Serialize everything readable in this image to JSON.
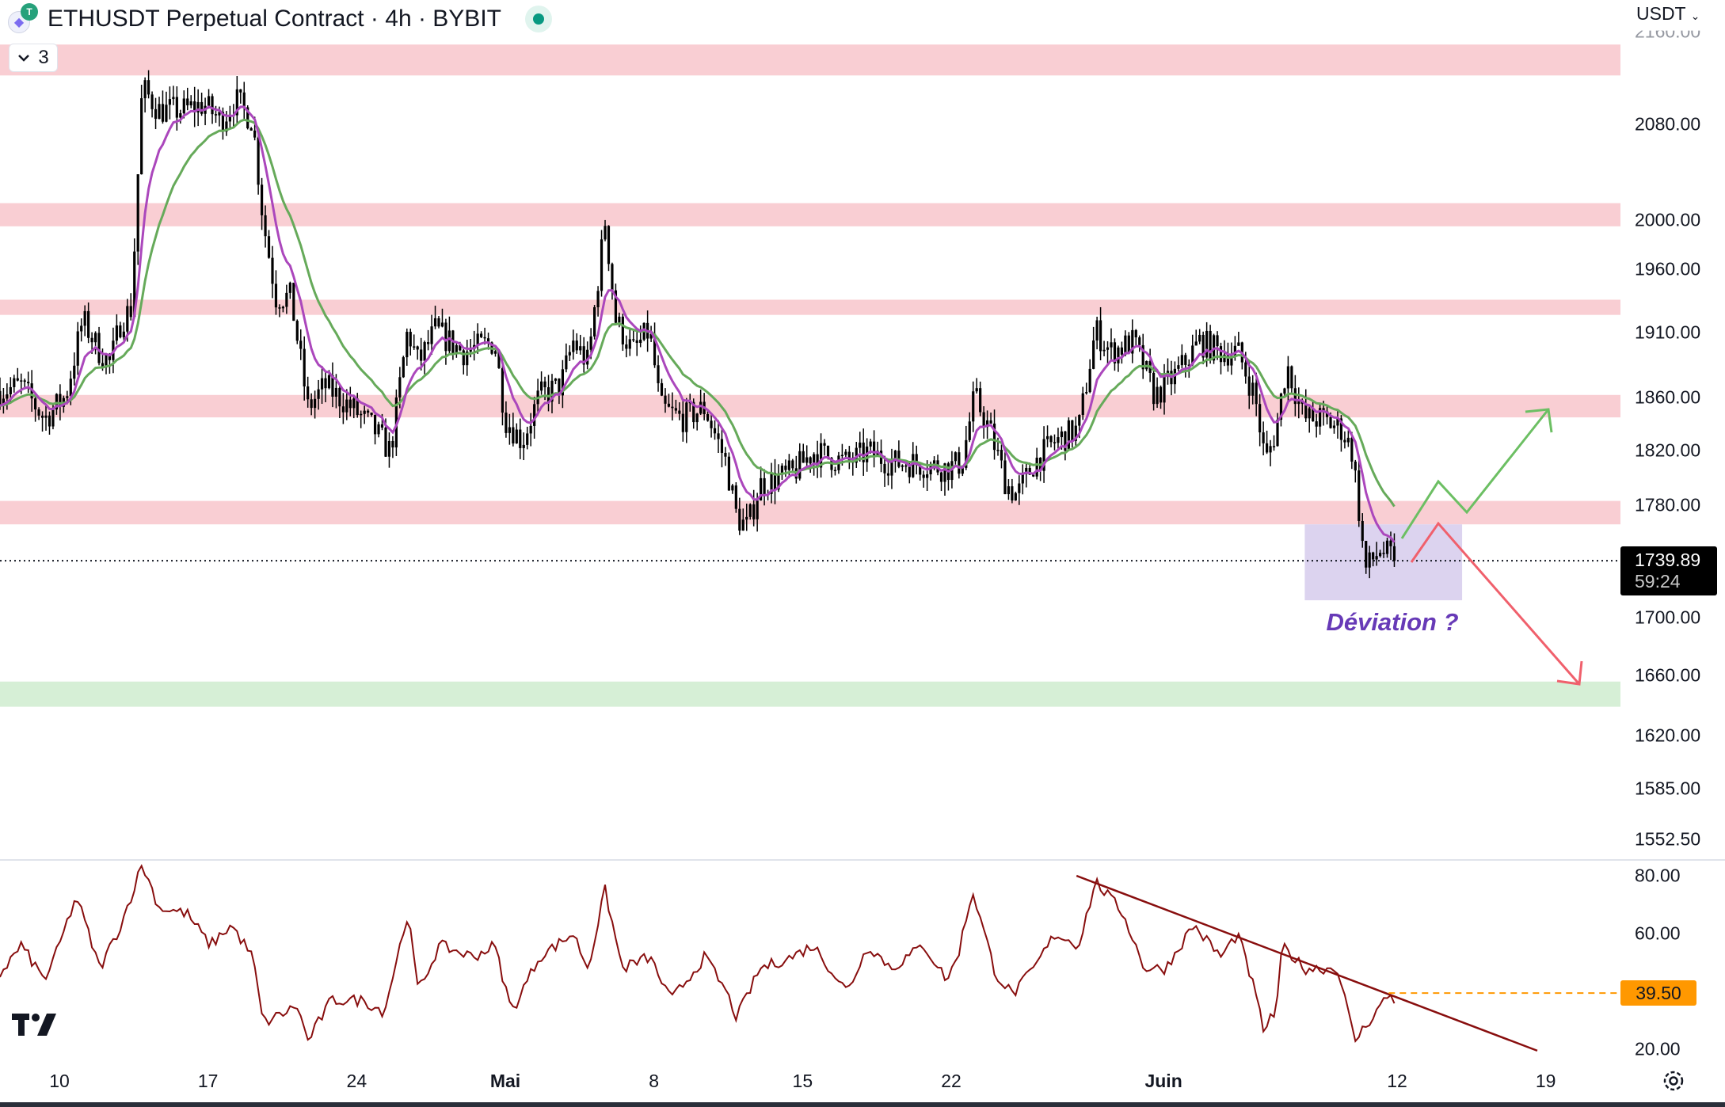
{
  "header": {
    "title": "ETHUSDT Perpetual Contract · 4h · BYBIT",
    "base_icon": "ethereum-icon",
    "quote_icon": "tether-icon",
    "status": "market-open-dot",
    "legend_toggle_count": "3",
    "currency": "USDT"
  },
  "colors": {
    "candle": "#000000",
    "ema_fast": "#ab47bc",
    "ema_slow": "#66aa5a",
    "resistance_zone": "#f9ced3",
    "support_zone": "#d6efd6",
    "deviation_box": "#dcd3ef",
    "deviation_text": "#673ab7",
    "bull_arrow": "#6cbf63",
    "bear_arrow": "#f0606c",
    "rsi_line": "#880e0e",
    "rsi_level": "#ff9800"
  },
  "annotation": {
    "deviation_label": "Déviation ?"
  },
  "price_axis": {
    "labels": [
      "2160.00",
      "2080.00",
      "2000.00",
      "1960.00",
      "1910.00",
      "1860.00",
      "1820.00",
      "1780.00",
      "1700.00",
      "1660.00",
      "1620.00",
      "1585.00",
      "1552.50"
    ],
    "last_price": "1739.89",
    "countdown": "59:24"
  },
  "rsi_axis": {
    "labels": [
      "80.00",
      "60.00",
      "20.00"
    ],
    "level_value": "39.50"
  },
  "time_axis": {
    "labels": [
      {
        "text": "10",
        "day": 0,
        "bold": false
      },
      {
        "text": "17",
        "day": 7,
        "bold": false
      },
      {
        "text": "24",
        "day": 14,
        "bold": false
      },
      {
        "text": "Mai",
        "day": 21,
        "bold": true
      },
      {
        "text": "8",
        "day": 28,
        "bold": false
      },
      {
        "text": "15",
        "day": 35,
        "bold": false
      },
      {
        "text": "22",
        "day": 42,
        "bold": false
      },
      {
        "text": "Juin",
        "day": 52,
        "bold": true
      },
      {
        "text": "12",
        "day": 63,
        "bold": false
      },
      {
        "text": "19",
        "day": 70,
        "bold": false
      }
    ]
  },
  "chart_data": {
    "type": "candlestick",
    "title": "ETHUSDT Perpetual Contract · 4h · BYBIT",
    "x_unit": "days since 10 April",
    "y_scale": "log",
    "ylim": [
      1530,
      2175
    ],
    "price_path": [
      [
        -2.8,
        1865
      ],
      [
        -1.8,
        1869
      ],
      [
        -0.7,
        1844
      ],
      [
        0.3,
        1861
      ],
      [
        1.1,
        1920
      ],
      [
        1.9,
        1895
      ],
      [
        2.4,
        1886
      ],
      [
        2.9,
        1920
      ],
      [
        3.4,
        1929
      ],
      [
        3.9,
        2111
      ],
      [
        4.7,
        2092
      ],
      [
        5.8,
        2092
      ],
      [
        6.8,
        2097
      ],
      [
        7.6,
        2083
      ],
      [
        8.3,
        2101
      ],
      [
        9.1,
        2083
      ],
      [
        9.6,
        1999
      ],
      [
        10.2,
        1938
      ],
      [
        10.9,
        1938
      ],
      [
        11.7,
        1852
      ],
      [
        12.5,
        1869
      ],
      [
        13.8,
        1852
      ],
      [
        14.8,
        1836
      ],
      [
        15.6,
        1819
      ],
      [
        16.4,
        1912
      ],
      [
        16.9,
        1886
      ],
      [
        17.7,
        1912
      ],
      [
        19.0,
        1895
      ],
      [
        20.5,
        1903
      ],
      [
        21.0,
        1844
      ],
      [
        21.8,
        1827
      ],
      [
        22.6,
        1861
      ],
      [
        23.6,
        1869
      ],
      [
        24.2,
        1903
      ],
      [
        24.9,
        1886
      ],
      [
        25.7,
        1999
      ],
      [
        26.2,
        1920
      ],
      [
        27.0,
        1895
      ],
      [
        27.8,
        1912
      ],
      [
        28.3,
        1852
      ],
      [
        29.3,
        1844
      ],
      [
        30.4,
        1852
      ],
      [
        31.4,
        1811
      ],
      [
        31.9,
        1771
      ],
      [
        32.4,
        1764
      ],
      [
        33.0,
        1795
      ],
      [
        34.5,
        1803
      ],
      [
        35.5,
        1819
      ],
      [
        37.1,
        1811
      ],
      [
        38.1,
        1819
      ],
      [
        39.2,
        1811
      ],
      [
        40.2,
        1811
      ],
      [
        41.8,
        1807
      ],
      [
        42.5,
        1811
      ],
      [
        43.1,
        1861
      ],
      [
        43.8,
        1836
      ],
      [
        44.6,
        1795
      ],
      [
        45.1,
        1787
      ],
      [
        45.9,
        1811
      ],
      [
        46.9,
        1827
      ],
      [
        48.0,
        1836
      ],
      [
        48.8,
        1912
      ],
      [
        49.5,
        1895
      ],
      [
        50.6,
        1903
      ],
      [
        51.6,
        1861
      ],
      [
        52.6,
        1878
      ],
      [
        53.7,
        1903
      ],
      [
        54.7,
        1895
      ],
      [
        55.5,
        1895
      ],
      [
        56.3,
        1861
      ],
      [
        56.8,
        1811
      ],
      [
        57.3,
        1836
      ],
      [
        57.8,
        1886
      ],
      [
        58.6,
        1844
      ],
      [
        59.4,
        1844
      ],
      [
        60.4,
        1836
      ],
      [
        60.9,
        1819
      ],
      [
        61.5,
        1733
      ],
      [
        62.2,
        1748
      ],
      [
        62.9,
        1740
      ]
    ],
    "indicators": [
      {
        "name": "EMA fast",
        "color": "#ab47bc"
      },
      {
        "name": "EMA slow",
        "color": "#66aa5a"
      }
    ],
    "zones": [
      {
        "type": "resistance",
        "from": 2122,
        "to": 2149
      },
      {
        "type": "resistance",
        "from": 1995,
        "to": 2014
      },
      {
        "type": "resistance",
        "from": 1924,
        "to": 1936
      },
      {
        "type": "resistance",
        "from": 1845,
        "to": 1862
      },
      {
        "type": "resistance",
        "from": 1766,
        "to": 1783
      },
      {
        "type": "support",
        "from": 1639,
        "to": 1656
      }
    ],
    "deviation_box": {
      "day_from": 58.65,
      "day_to": 66.06,
      "price_from": 1712,
      "price_to": 1766
    },
    "last_price": 1739.89,
    "rsi": {
      "ylim": [
        10,
        90
      ],
      "levels_shown": [
        80,
        60,
        20
      ],
      "path": [
        [
          -2.8,
          46
        ],
        [
          -1.8,
          56
        ],
        [
          -0.7,
          44
        ],
        [
          -0.2,
          52
        ],
        [
          0.8,
          73
        ],
        [
          1.9,
          48
        ],
        [
          2.9,
          63
        ],
        [
          3.9,
          84
        ],
        [
          4.7,
          69
        ],
        [
          6.0,
          67
        ],
        [
          7.1,
          56
        ],
        [
          8.1,
          63
        ],
        [
          9.1,
          52
        ],
        [
          9.6,
          29
        ],
        [
          11.2,
          35
        ],
        [
          11.7,
          23
        ],
        [
          12.8,
          37
        ],
        [
          14.3,
          37
        ],
        [
          15.3,
          33
        ],
        [
          16.4,
          67
        ],
        [
          16.9,
          40
        ],
        [
          17.9,
          56
        ],
        [
          19.5,
          52
        ],
        [
          20.5,
          56
        ],
        [
          21.3,
          33
        ],
        [
          22.6,
          52
        ],
        [
          24.2,
          60
        ],
        [
          24.9,
          48
        ],
        [
          25.7,
          75
        ],
        [
          26.5,
          48
        ],
        [
          27.8,
          52
        ],
        [
          28.8,
          37
        ],
        [
          30.4,
          52
        ],
        [
          31.4,
          40
        ],
        [
          31.9,
          31
        ],
        [
          33.0,
          48
        ],
        [
          34.5,
          52
        ],
        [
          35.5,
          56
        ],
        [
          37.1,
          40
        ],
        [
          38.1,
          56
        ],
        [
          39.2,
          48
        ],
        [
          40.7,
          56
        ],
        [
          41.8,
          44
        ],
        [
          42.3,
          52
        ],
        [
          43.0,
          75
        ],
        [
          44.1,
          46
        ],
        [
          44.9,
          39
        ],
        [
          45.9,
          48
        ],
        [
          46.9,
          60
        ],
        [
          48.0,
          56
        ],
        [
          48.8,
          78
        ],
        [
          50.1,
          67
        ],
        [
          51.1,
          48
        ],
        [
          52.1,
          48
        ],
        [
          53.4,
          63
        ],
        [
          54.7,
          52
        ],
        [
          55.5,
          60
        ],
        [
          56.3,
          40
        ],
        [
          56.7,
          27
        ],
        [
          57.3,
          33
        ],
        [
          57.6,
          56
        ],
        [
          58.6,
          48
        ],
        [
          60.2,
          48
        ],
        [
          61.0,
          23
        ],
        [
          62.0,
          33
        ],
        [
          62.6,
          39
        ],
        [
          62.9,
          37
        ]
      ],
      "trendline": [
        [
          47.9,
          80
        ],
        [
          69.6,
          19.6
        ]
      ],
      "level": 39.5
    }
  }
}
